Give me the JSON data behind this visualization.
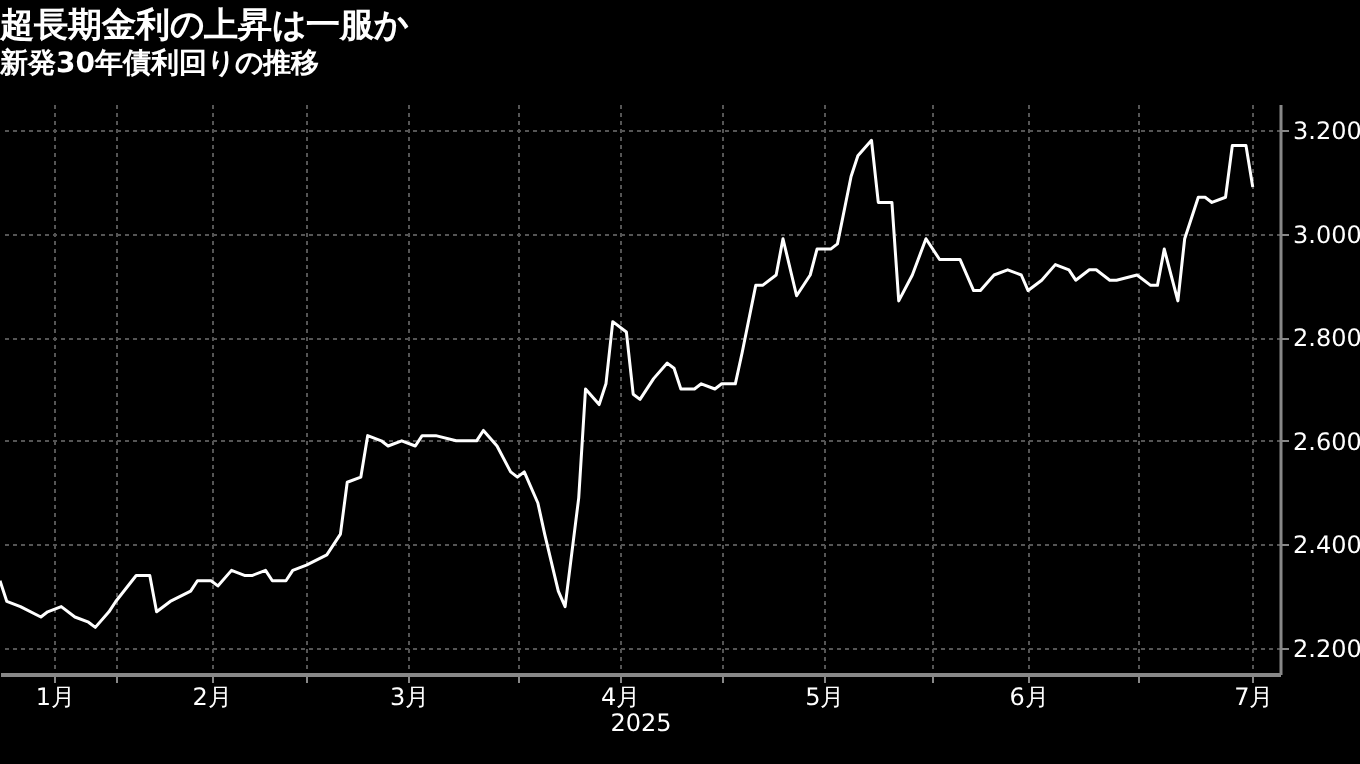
{
  "chart_data": {
    "type": "line",
    "title": "超長期金利の上昇は一服か",
    "subtitle": "新発30年債利回りの推移",
    "xlabel": "2025",
    "x": [
      "2025-01-15",
      "2025-01-16",
      "2025-01-18",
      "2025-01-21",
      "2025-01-22",
      "2025-01-24",
      "2025-01-26",
      "2025-01-28",
      "2025-01-29",
      "2025-01-31",
      "2025-02-01",
      "2025-02-04",
      "2025-02-06",
      "2025-02-07",
      "2025-02-09",
      "2025-02-12",
      "2025-02-13",
      "2025-02-15",
      "2025-02-16",
      "2025-02-18",
      "2025-02-20",
      "2025-02-21",
      "2025-02-23",
      "2025-02-24",
      "2025-02-26",
      "2025-02-27",
      "2025-03-01",
      "2025-03-04",
      "2025-03-06",
      "2025-03-07",
      "2025-03-09",
      "2025-03-10",
      "2025-03-12",
      "2025-03-13",
      "2025-03-15",
      "2025-03-17",
      "2025-03-18",
      "2025-03-20",
      "2025-03-23",
      "2025-03-26",
      "2025-03-27",
      "2025-03-29",
      "2025-03-31",
      "2025-04-01",
      "2025-04-02",
      "2025-04-04",
      "2025-04-05",
      "2025-04-07",
      "2025-04-08",
      "2025-04-10",
      "2025-04-11",
      "2025-04-13",
      "2025-04-14",
      "2025-04-15",
      "2025-04-17",
      "2025-04-18",
      "2025-04-19",
      "2025-04-21",
      "2025-04-23",
      "2025-04-24",
      "2025-04-25",
      "2025-04-27",
      "2025-04-28",
      "2025-04-30",
      "2025-05-01",
      "2025-05-03",
      "2025-05-04",
      "2025-05-06",
      "2025-05-07",
      "2025-05-09",
      "2025-05-10",
      "2025-05-12",
      "2025-05-14",
      "2025-05-15",
      "2025-05-17",
      "2025-05-18",
      "2025-05-20",
      "2025-05-21",
      "2025-05-23",
      "2025-05-24",
      "2025-05-26",
      "2025-05-27",
      "2025-05-29",
      "2025-05-31",
      "2025-06-02",
      "2025-06-04",
      "2025-06-05",
      "2025-06-07",
      "2025-06-08",
      "2025-06-10",
      "2025-06-12",
      "2025-06-14",
      "2025-06-15",
      "2025-06-17",
      "2025-06-19",
      "2025-06-21",
      "2025-06-22",
      "2025-06-24",
      "2025-06-25",
      "2025-06-27",
      "2025-06-28",
      "2025-07-01",
      "2025-07-03",
      "2025-07-04",
      "2025-07-05",
      "2025-07-07",
      "2025-07-08",
      "2025-07-10",
      "2025-07-11",
      "2025-07-12",
      "2025-07-14",
      "2025-07-15",
      "2025-07-17",
      "2025-07-18"
    ],
    "series": [
      {
        "color": "#ffffff",
        "values": [
          2.33,
          2.29,
          2.28,
          2.26,
          2.27,
          2.28,
          2.26,
          2.25,
          2.24,
          2.27,
          2.29,
          2.34,
          2.34,
          2.27,
          2.29,
          2.31,
          2.33,
          2.33,
          2.32,
          2.35,
          2.34,
          2.34,
          2.35,
          2.33,
          2.33,
          2.35,
          2.36,
          2.38,
          2.42,
          2.52,
          2.53,
          2.61,
          2.6,
          2.59,
          2.6,
          2.59,
          2.61,
          2.61,
          2.6,
          2.6,
          2.62,
          2.59,
          2.54,
          2.53,
          2.54,
          2.48,
          2.42,
          2.31,
          2.28,
          2.49,
          2.7,
          2.67,
          2.71,
          2.83,
          2.81,
          2.69,
          2.68,
          2.72,
          2.75,
          2.74,
          2.7,
          2.7,
          2.71,
          2.7,
          2.71,
          2.71,
          2.77,
          2.9,
          2.9,
          2.92,
          2.99,
          2.88,
          2.92,
          2.97,
          2.97,
          2.98,
          3.11,
          3.15,
          3.18,
          3.06,
          3.06,
          2.87,
          2.92,
          2.99,
          2.95,
          2.95,
          2.95,
          2.89,
          2.89,
          2.92,
          2.93,
          2.92,
          2.89,
          2.91,
          2.94,
          2.93,
          2.91,
          2.93,
          2.93,
          2.91,
          2.91,
          2.92,
          2.9,
          2.9,
          2.97,
          2.87,
          2.99,
          3.07,
          3.07,
          3.06,
          3.07,
          3.17,
          3.17,
          3.09
        ]
      }
    ],
    "xlim": [
      "2025-01-15",
      "2025-07-22"
    ],
    "xticks": [
      {
        "value": "2025-01-23",
        "label": "1月"
      },
      {
        "value": "2025-02-01",
        "label": null
      },
      {
        "value": "2025-02-15",
        "label": "2月"
      },
      {
        "value": "2025-03-01",
        "label": null
      },
      {
        "value": "2025-03-16",
        "label": "3月"
      },
      {
        "value": "2025-04-01",
        "label": null
      },
      {
        "value": "2025-04-16",
        "label": "4月"
      },
      {
        "value": "2025-05-01",
        "label": null
      },
      {
        "value": "2025-05-16",
        "label": "5月"
      },
      {
        "value": "2025-06-01",
        "label": null
      },
      {
        "value": "2025-06-15",
        "label": "6月"
      },
      {
        "value": "2025-07-01",
        "label": null
      },
      {
        "value": "2025-07-18",
        "label": "7月"
      }
    ],
    "ylim": [
      2.15,
      3.25
    ],
    "yticks": [
      {
        "value": 2.2,
        "label": "2.200"
      },
      {
        "value": 2.4,
        "label": "2.400"
      },
      {
        "value": 2.6,
        "label": "2.600"
      },
      {
        "value": 2.8,
        "label": "2.800"
      },
      {
        "value": 3.0,
        "label": "3.000"
      },
      {
        "value": 3.2,
        "label": "3.200"
      }
    ],
    "grid": true,
    "line_style": "solid"
  }
}
